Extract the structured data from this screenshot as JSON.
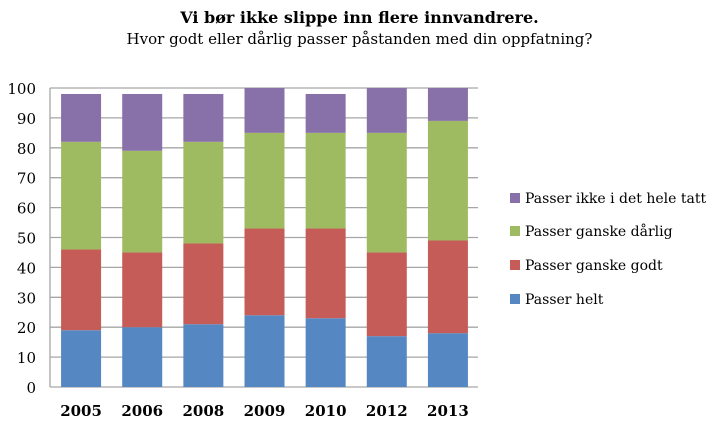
{
  "chart_data": {
    "type": "bar",
    "stacked": true,
    "title": "Vi bør ikke slippe inn flere innvandrere.",
    "subtitle": "Hvor godt eller dårlig passer påstanden med din oppfatning?",
    "xlabel": "",
    "ylabel": "",
    "ylim": [
      0,
      100
    ],
    "yticks": [
      "0",
      "10",
      "20",
      "30",
      "40",
      "50",
      "60",
      "70",
      "80",
      "90",
      "100"
    ],
    "categories": [
      "2005",
      "2006",
      "2008",
      "2009",
      "2010",
      "2012",
      "2013"
    ],
    "series": [
      {
        "name": "Passer helt",
        "color": "#5588c3",
        "values": [
          19,
          20,
          21,
          24,
          23,
          17,
          18
        ]
      },
      {
        "name": "Passer ganske godt",
        "color": "#c65c57",
        "values": [
          27,
          25,
          27,
          29,
          30,
          28,
          31
        ]
      },
      {
        "name": "Passer ganske dårlig",
        "color": "#9fbb62",
        "values": [
          36,
          34,
          34,
          32,
          32,
          40,
          40
        ]
      },
      {
        "name": "Passer ikke i det hele tatt",
        "color": "#8870a8",
        "values": [
          16,
          19,
          16,
          15,
          13,
          15,
          11
        ]
      }
    ],
    "grid": true,
    "legend": "right"
  }
}
